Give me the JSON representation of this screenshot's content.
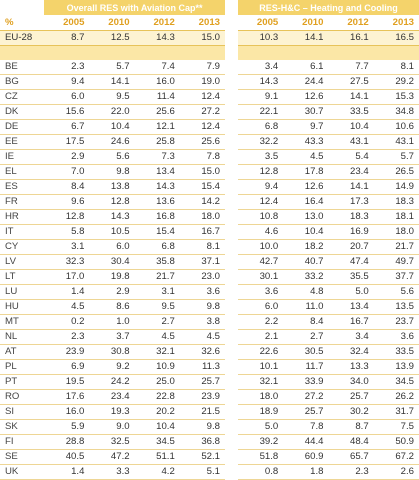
{
  "header": {
    "group_left": "Overall RES with Aviation Cap**",
    "group_right": "RES-H&C – Heating and Cooling",
    "pct": "%",
    "years": [
      "2005",
      "2010",
      "2012",
      "2013"
    ]
  },
  "eu_row": {
    "label": "EU-28",
    "left": [
      "8.7",
      "12.5",
      "14.3",
      "15.0"
    ],
    "right": [
      "10.3",
      "14.1",
      "16.1",
      "16.5"
    ]
  },
  "rows": [
    {
      "label": "BE",
      "left": [
        "2.3",
        "5.7",
        "7.4",
        "7.9"
      ],
      "right": [
        "3.4",
        "6.1",
        "7.7",
        "8.1"
      ]
    },
    {
      "label": "BG",
      "left": [
        "9.4",
        "14.1",
        "16.0",
        "19.0"
      ],
      "right": [
        "14.3",
        "24.4",
        "27.5",
        "29.2"
      ]
    },
    {
      "label": "CZ",
      "left": [
        "6.0",
        "9.5",
        "11.4",
        "12.4"
      ],
      "right": [
        "9.1",
        "12.6",
        "14.1",
        "15.3"
      ]
    },
    {
      "label": "DK",
      "left": [
        "15.6",
        "22.0",
        "25.6",
        "27.2"
      ],
      "right": [
        "22.1",
        "30.7",
        "33.5",
        "34.8"
      ]
    },
    {
      "label": "DE",
      "left": [
        "6.7",
        "10.4",
        "12.1",
        "12.4"
      ],
      "right": [
        "6.8",
        "9.7",
        "10.4",
        "10.6"
      ]
    },
    {
      "label": "EE",
      "left": [
        "17.5",
        "24.6",
        "25.8",
        "25.6"
      ],
      "right": [
        "32.2",
        "43.3",
        "43.1",
        "43.1"
      ]
    },
    {
      "label": "IE",
      "left": [
        "2.9",
        "5.6",
        "7.3",
        "7.8"
      ],
      "right": [
        "3.5",
        "4.5",
        "5.4",
        "5.7"
      ]
    },
    {
      "label": "EL",
      "left": [
        "7.0",
        "9.8",
        "13.4",
        "15.0"
      ],
      "right": [
        "12.8",
        "17.8",
        "23.4",
        "26.5"
      ]
    },
    {
      "label": "ES",
      "left": [
        "8.4",
        "13.8",
        "14.3",
        "15.4"
      ],
      "right": [
        "9.4",
        "12.6",
        "14.1",
        "14.9"
      ]
    },
    {
      "label": "FR",
      "left": [
        "9.6",
        "12.8",
        "13.6",
        "14.2"
      ],
      "right": [
        "12.4",
        "16.4",
        "17.3",
        "18.3"
      ]
    },
    {
      "label": "HR",
      "left": [
        "12.8",
        "14.3",
        "16.8",
        "18.0"
      ],
      "right": [
        "10.8",
        "13.0",
        "18.3",
        "18.1"
      ]
    },
    {
      "label": "IT",
      "left": [
        "5.8",
        "10.5",
        "15.4",
        "16.7"
      ],
      "right": [
        "4.6",
        "10.4",
        "16.9",
        "18.0"
      ]
    },
    {
      "label": "CY",
      "left": [
        "3.1",
        "6.0",
        "6.8",
        "8.1"
      ],
      "right": [
        "10.0",
        "18.2",
        "20.7",
        "21.7"
      ]
    },
    {
      "label": "LV",
      "left": [
        "32.3",
        "30.4",
        "35.8",
        "37.1"
      ],
      "right": [
        "42.7",
        "40.7",
        "47.4",
        "49.7"
      ]
    },
    {
      "label": "LT",
      "left": [
        "17.0",
        "19.8",
        "21.7",
        "23.0"
      ],
      "right": [
        "30.1",
        "33.2",
        "35.5",
        "37.7"
      ]
    },
    {
      "label": "LU",
      "left": [
        "1.4",
        "2.9",
        "3.1",
        "3.6"
      ],
      "right": [
        "3.6",
        "4.8",
        "5.0",
        "5.6"
      ]
    },
    {
      "label": "HU",
      "left": [
        "4.5",
        "8.6",
        "9.5",
        "9.8"
      ],
      "right": [
        "6.0",
        "11.0",
        "13.4",
        "13.5"
      ]
    },
    {
      "label": "MT",
      "left": [
        "0.2",
        "1.0",
        "2.7",
        "3.8"
      ],
      "right": [
        "2.2",
        "8.4",
        "16.7",
        "23.7"
      ]
    },
    {
      "label": "NL",
      "left": [
        "2.3",
        "3.7",
        "4.5",
        "4.5"
      ],
      "right": [
        "2.1",
        "2.7",
        "3.4",
        "3.6"
      ]
    },
    {
      "label": "AT",
      "left": [
        "23.9",
        "30.8",
        "32.1",
        "32.6"
      ],
      "right": [
        "22.6",
        "30.5",
        "32.4",
        "33.5"
      ]
    },
    {
      "label": "PL",
      "left": [
        "6.9",
        "9.2",
        "10.9",
        "11.3"
      ],
      "right": [
        "10.1",
        "11.7",
        "13.3",
        "13.9"
      ]
    },
    {
      "label": "PT",
      "left": [
        "19.5",
        "24.2",
        "25.0",
        "25.7"
      ],
      "right": [
        "32.1",
        "33.9",
        "34.0",
        "34.5"
      ]
    },
    {
      "label": "RO",
      "left": [
        "17.6",
        "23.4",
        "22.8",
        "23.9"
      ],
      "right": [
        "18.0",
        "27.2",
        "25.7",
        "26.2"
      ]
    },
    {
      "label": "SI",
      "left": [
        "16.0",
        "19.3",
        "20.2",
        "21.5"
      ],
      "right": [
        "18.9",
        "25.7",
        "30.2",
        "31.7"
      ]
    },
    {
      "label": "SK",
      "left": [
        "5.9",
        "9.0",
        "10.4",
        "9.8"
      ],
      "right": [
        "5.0",
        "7.8",
        "8.7",
        "7.5"
      ]
    },
    {
      "label": "FI",
      "left": [
        "28.8",
        "32.5",
        "34.5",
        "36.8"
      ],
      "right": [
        "39.2",
        "44.4",
        "48.4",
        "50.9"
      ]
    },
    {
      "label": "SE",
      "left": [
        "40.5",
        "47.2",
        "51.1",
        "52.1"
      ],
      "right": [
        "51.8",
        "60.9",
        "65.7",
        "67.2"
      ]
    },
    {
      "label": "UK",
      "left": [
        "1.4",
        "3.3",
        "4.2",
        "5.1"
      ],
      "right": [
        "0.8",
        "1.8",
        "2.3",
        "2.6"
      ]
    }
  ]
}
